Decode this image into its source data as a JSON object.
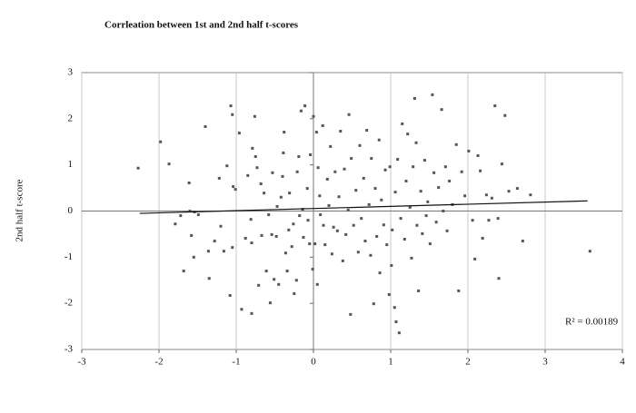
{
  "chart_data": {
    "type": "scatter",
    "title": "Corrleation between 1st and 2nd half t-scores",
    "y_label": "2nd half t-score",
    "annotation": "R² = 0.00189",
    "color": "#555555",
    "grid": true,
    "xlim": [
      -3,
      4
    ],
    "xticks": [
      -3,
      -2,
      -1,
      0,
      1,
      2,
      3,
      4
    ],
    "ylim": [
      -3,
      3
    ],
    "yticks": [
      -3,
      -2,
      -1,
      0,
      1,
      2,
      3
    ],
    "trendline": {
      "x": [
        -2.25,
        3.55
      ],
      "y": [
        -0.05,
        0.22
      ]
    },
    "x": [
      -2.27,
      -1.98,
      -1.87,
      -1.79,
      -1.72,
      -1.68,
      -1.61,
      -1.6,
      -1.58,
      -1.55,
      -1.54,
      -1.49,
      -1.4,
      -1.36,
      -1.35,
      -1.28,
      -1.22,
      -1.2,
      -1.16,
      -1.12,
      -1.08,
      -1.07,
      -1.05,
      -1.05,
      -1.04,
      -1.01,
      -0.96,
      -0.93,
      -0.88,
      -0.85,
      -0.81,
      -0.8,
      -0.8,
      -0.79,
      -0.76,
      -0.75,
      -0.73,
      -0.71,
      -0.68,
      -0.67,
      -0.64,
      -0.61,
      -0.58,
      -0.56,
      -0.54,
      -0.53,
      -0.51,
      -0.48,
      -0.47,
      -0.45,
      -0.42,
      -0.4,
      -0.39,
      -0.38,
      -0.36,
      -0.34,
      -0.32,
      -0.31,
      -0.28,
      -0.26,
      -0.25,
      -0.22,
      -0.21,
      -0.19,
      -0.18,
      -0.16,
      -0.14,
      -0.13,
      -0.11,
      -0.08,
      -0.07,
      -0.05,
      -0.04,
      -0.01,
      0,
      0.02,
      0.04,
      0.05,
      0.06,
      0.08,
      0.09,
      0.12,
      0.13,
      0.15,
      0.18,
      0.2,
      0.22,
      0.24,
      0.26,
      0.28,
      0.31,
      0.33,
      0.35,
      0.38,
      0.4,
      0.42,
      0.45,
      0.46,
      0.48,
      0.49,
      0.52,
      0.55,
      0.58,
      0.6,
      0.62,
      0.65,
      0.67,
      0.69,
      0.72,
      0.74,
      0.75,
      0.78,
      0.8,
      0.82,
      0.85,
      0.86,
      0.88,
      0.91,
      0.93,
      0.95,
      0.98,
      0.99,
      1.01,
      1.02,
      1.05,
      1.06,
      1.07,
      1.09,
      1.11,
      1.13,
      1.15,
      1.18,
      1.2,
      1.22,
      1.25,
      1.27,
      1.29,
      1.31,
      1.33,
      1.34,
      1.36,
      1.39,
      1.41,
      1.44,
      1.46,
      1.48,
      1.51,
      1.54,
      1.56,
      1.59,
      1.62,
      1.66,
      1.68,
      1.71,
      1.73,
      1.76,
      1.8,
      1.85,
      1.88,
      1.92,
      1.96,
      2.01,
      2.06,
      2.09,
      2.13,
      2.16,
      2.19,
      2.24,
      2.27,
      2.31,
      2.35,
      2.39,
      2.4,
      2.44,
      2.48,
      2.53,
      2.64,
      2.71,
      2.81,
      3.58
    ],
    "values": [
      0.93,
      1.5,
      1.02,
      -0.28,
      -0.1,
      -1.3,
      0.61,
      0,
      -0.53,
      -1,
      -0.02,
      -0.08,
      1.83,
      -0.87,
      -1.46,
      -0.65,
      0.71,
      -0.33,
      -0.87,
      0.98,
      -1.83,
      2.28,
      2.09,
      -0.79,
      0.53,
      0.47,
      1.69,
      -2.13,
      -0.59,
      0.77,
      -0.18,
      -0.69,
      -2.22,
      1.36,
      2.05,
      1.18,
      0.94,
      -1.61,
      0.59,
      -0.53,
      0.39,
      -1.3,
      -0.08,
      -1.99,
      -0.51,
      0.83,
      -1.48,
      -0.55,
      0.1,
      -1.59,
      0.3,
      0.75,
      1.26,
      1.71,
      -0.91,
      -1.3,
      -0.41,
      0.39,
      -0.77,
      -0.28,
      -1.79,
      -1.5,
      0.85,
      1.18,
      -0.1,
      2.17,
      0.04,
      -0.57,
      2.28,
      0.49,
      -0.2,
      -0.71,
      1.22,
      -1.26,
      2.05,
      -0.71,
      1.71,
      -1.59,
      0.94,
      0.33,
      -0.08,
      1.85,
      -0.31,
      -0.73,
      0.69,
      0.12,
      1.4,
      -0.93,
      -0.35,
      0.85,
      -0.43,
      0.31,
      1.73,
      -1.08,
      0.91,
      -0.51,
      0.02,
      2.09,
      -2.24,
      1.14,
      -0.31,
      0.45,
      -0.89,
      1.42,
      -0.16,
      0.71,
      -0.65,
      1.75,
      0.14,
      -0.96,
      1.14,
      -2.01,
      0.49,
      -0.55,
      1.54,
      -1.34,
      0.24,
      -0.3,
      0.89,
      -0.73,
      -1.81,
      0.96,
      -1.18,
      -0.41,
      -2.09,
      0.41,
      -2.4,
      1.12,
      -2.64,
      -0.16,
      1.89,
      -0.61,
      0.65,
      1.67,
      0.08,
      -1.02,
      0.96,
      2.44,
      1.48,
      -0.31,
      -1.73,
      0.43,
      -0.49,
      1.1,
      -0.1,
      0.2,
      -0.71,
      2.52,
      0.83,
      -0.24,
      0.51,
      2.2,
      0,
      0.96,
      -0.43,
      0.65,
      0.14,
      1.44,
      -1.73,
      0.85,
      0.33,
      1.3,
      -0.2,
      -1.04,
      1.2,
      0.87,
      -0.59,
      0.35,
      -0.2,
      0.28,
      2.28,
      -0.16,
      -1.46,
      1.02,
      2.07,
      0.43,
      0.49,
      -0.65,
      0.35,
      -0.87
    ]
  }
}
